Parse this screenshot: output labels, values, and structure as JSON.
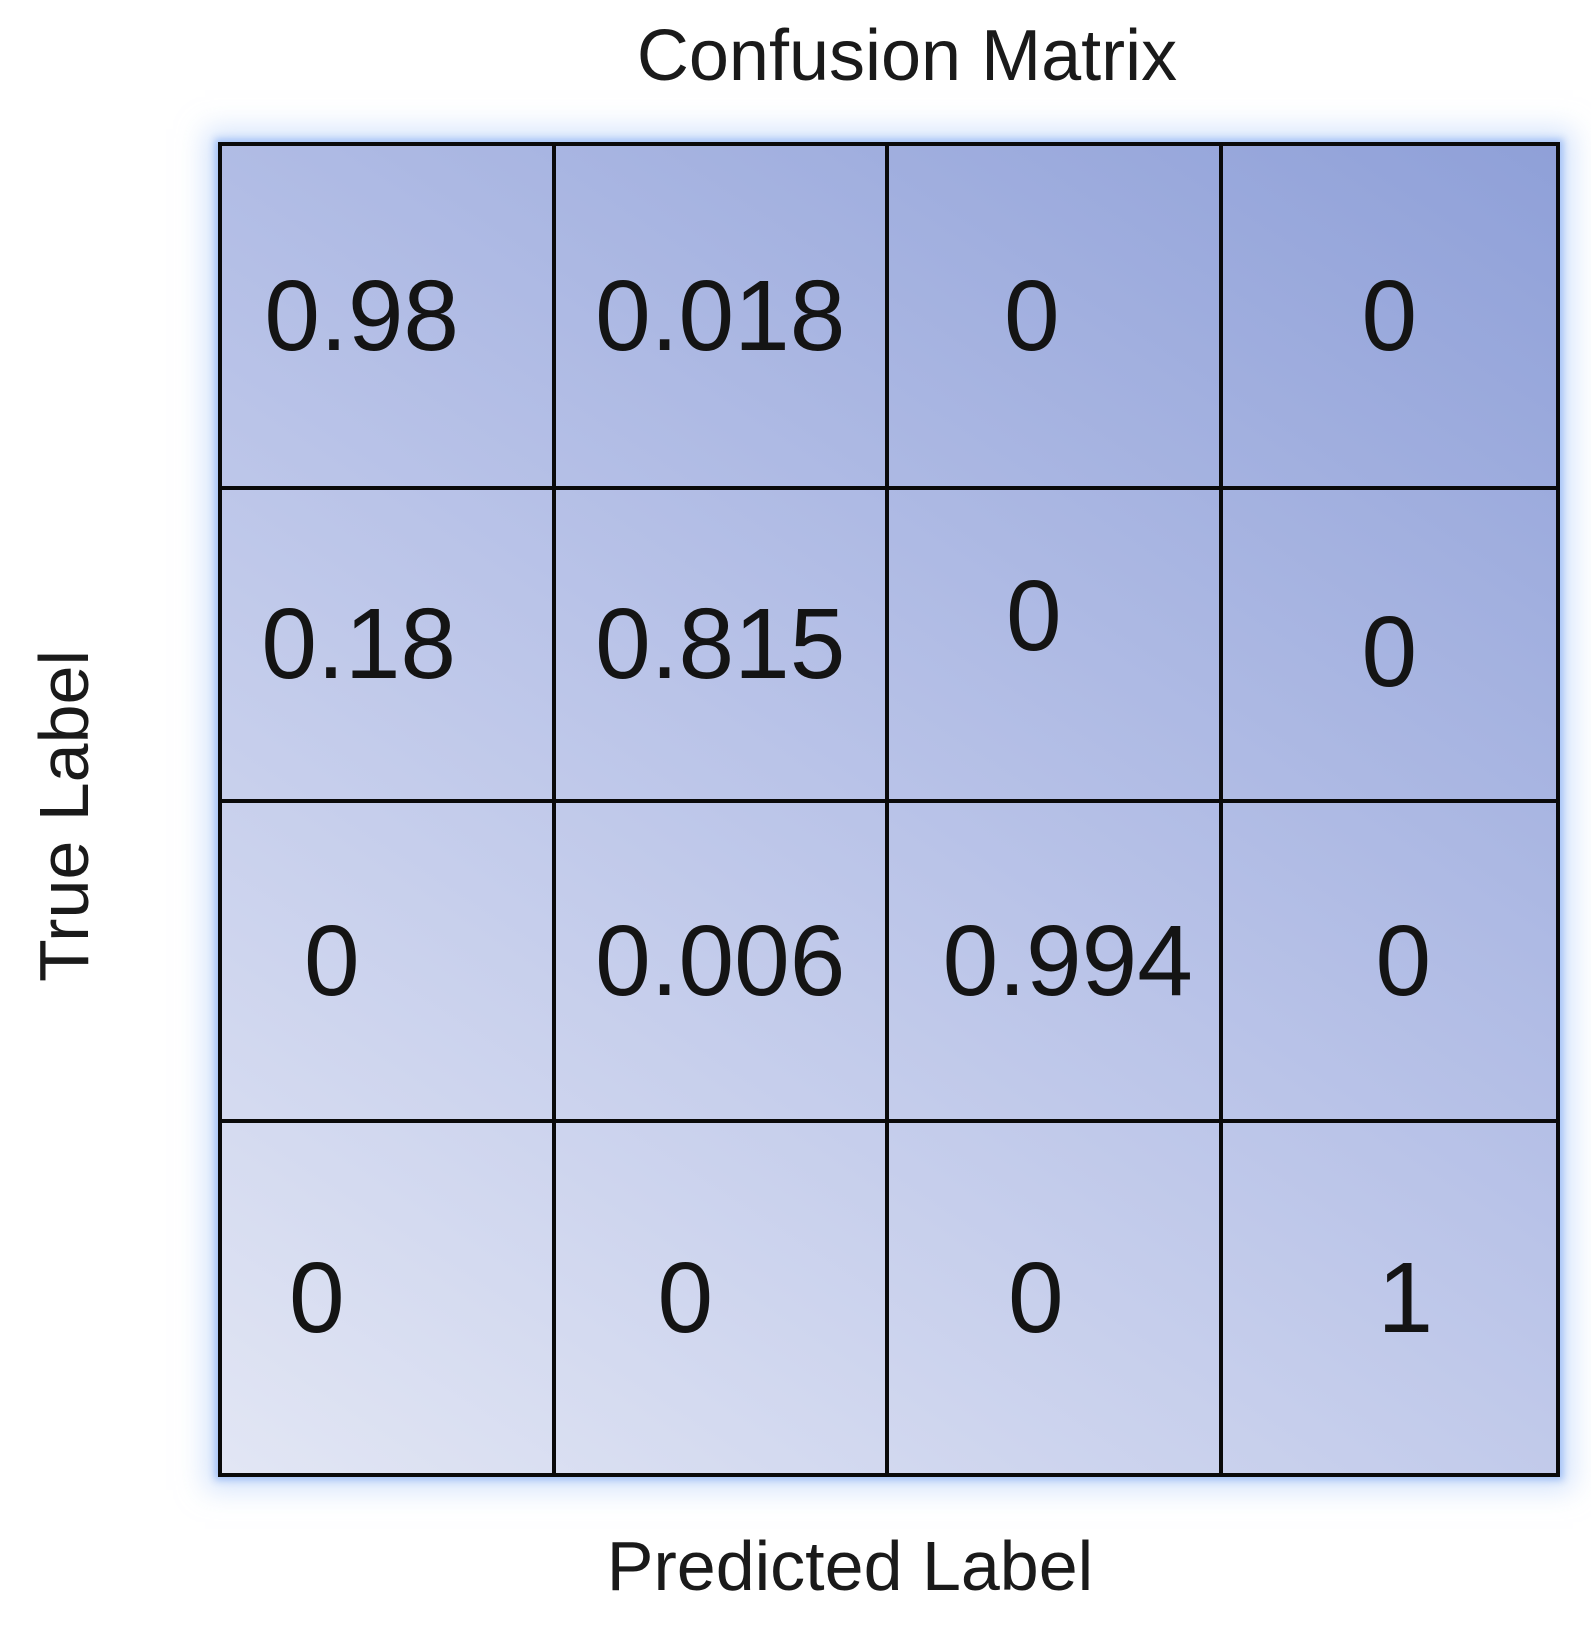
{
  "title": "Confusion Matrix",
  "y_axis_label": "True Label",
  "x_axis_label": "Predicted Label",
  "colors": {
    "background": "#ffffff",
    "grid_line": "#0a0a0a",
    "text": "#1a1a1a",
    "cell_gradient_light": "#e2e6f4",
    "cell_gradient_mid": "#b9c3e8",
    "cell_gradient_dark": "#8fa0d8",
    "outer_glow": "#b1ccf8"
  },
  "chart_data": {
    "type": "heatmap",
    "title": "Confusion Matrix",
    "xlabel": "Predicted Label",
    "ylabel": "True Label",
    "rows": 4,
    "cols": 4,
    "grid": "on",
    "values": [
      [
        0.98,
        0.018,
        0,
        0
      ],
      [
        0.18,
        0.815,
        0,
        0
      ],
      [
        0,
        0.006,
        0.994,
        0
      ],
      [
        0,
        0,
        0,
        1
      ]
    ],
    "cells": [
      [
        "0.98",
        "0.018",
        "0",
        "0"
      ],
      [
        "0.18",
        "0.815",
        "0",
        "0"
      ],
      [
        "0",
        "0.006",
        "0.994",
        "0"
      ],
      [
        "0",
        "0",
        "0",
        "1"
      ]
    ],
    "fill_style": "diagonal gradient, light bottom-left to dark top-right"
  }
}
